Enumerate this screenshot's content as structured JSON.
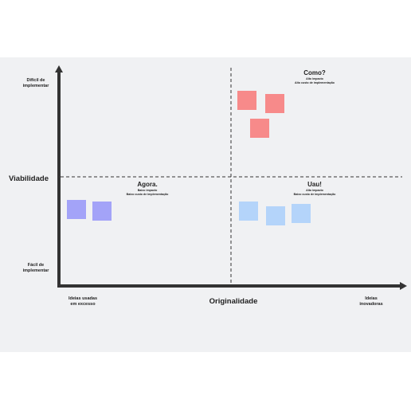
{
  "axes": {
    "y_title": "Viabilidade",
    "y_top": [
      "Difícil de",
      "implementar"
    ],
    "y_bottom": [
      "Fácil de",
      "implementar"
    ],
    "x_title": "Originalidade",
    "x_left": [
      "Ideias usadas",
      "em excesso"
    ],
    "x_right": [
      "Ideias",
      "inovadoras"
    ]
  },
  "quadrants": [
    {
      "title": "Como?",
      "lines": [
        "Alto impacto",
        "Alto custo de implementação"
      ]
    },
    {
      "title": "Agora.",
      "lines": [
        "Baixo impacto",
        "Baixo custo de implementação"
      ]
    },
    {
      "title": "Uau!",
      "lines": [
        "Alto impacto",
        "Baixo custo de implementação"
      ]
    }
  ]
}
